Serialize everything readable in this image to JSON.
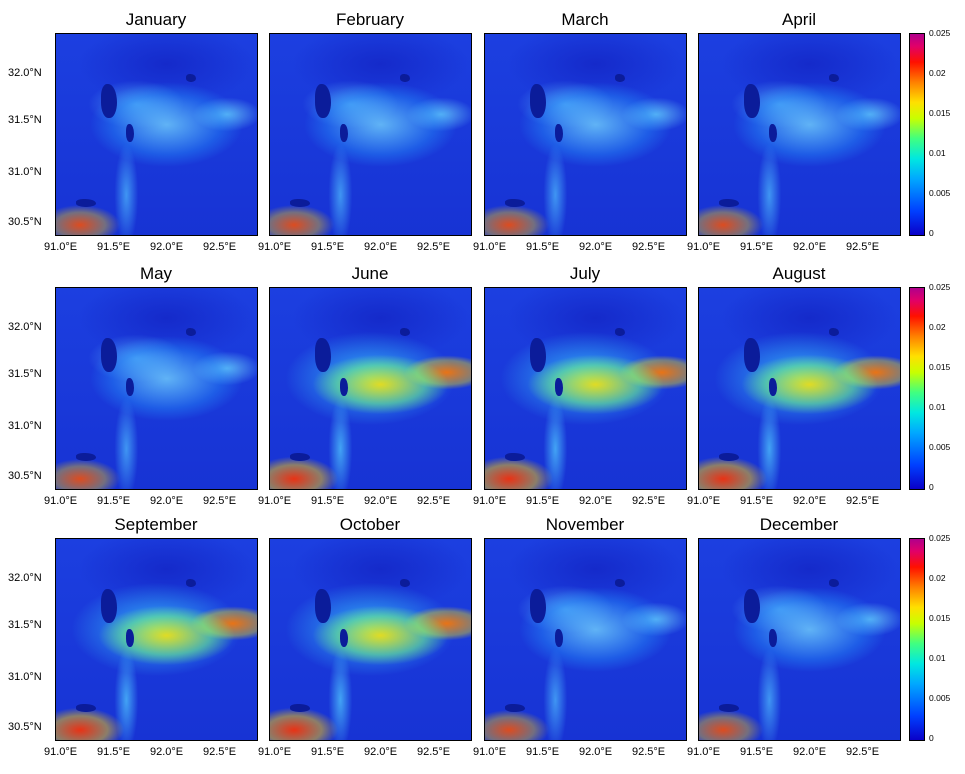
{
  "panels": [
    {
      "title": "January"
    },
    {
      "title": "February"
    },
    {
      "title": "March"
    },
    {
      "title": "April"
    },
    {
      "title": "May"
    },
    {
      "title": "June"
    },
    {
      "title": "July"
    },
    {
      "title": "August"
    },
    {
      "title": "September"
    },
    {
      "title": "October"
    },
    {
      "title": "November"
    },
    {
      "title": "December"
    }
  ],
  "axes": {
    "lat_labels": [
      "32.0°N",
      "31.5°N",
      "31.0°N",
      "30.5°N"
    ],
    "lon_labels": [
      "91.0°E",
      "91.5°E",
      "92.0°E",
      "92.5°E"
    ]
  },
  "colorbar": {
    "tick_labels": [
      "0.025",
      "0.02",
      "0.015",
      "0.01",
      "0.005",
      "0"
    ],
    "colormap": "jet",
    "min": 0,
    "max": 0.025
  },
  "colors": {
    "background_low": "#1733d4",
    "high_value": "#ff1000"
  }
}
